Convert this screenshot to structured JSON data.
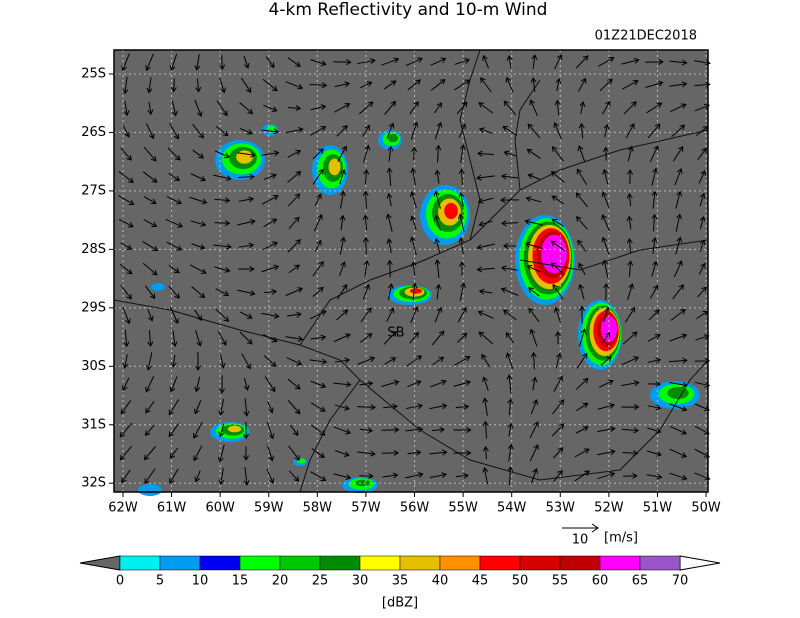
{
  "title": "4-km Reflectivity and 10-m Wind",
  "timestamp": "01Z21DEC2018",
  "map": {
    "xlim": [
      -62.185,
      -49.96
    ],
    "ylim": [
      -32.15,
      -24.59
    ],
    "lon_ticks": [
      {
        "value": -62,
        "label": "62W"
      },
      {
        "value": -61,
        "label": "61W"
      },
      {
        "value": -60,
        "label": "60W"
      },
      {
        "value": -59,
        "label": "59W"
      },
      {
        "value": -58,
        "label": "58W"
      },
      {
        "value": -57,
        "label": "57W"
      },
      {
        "value": -56,
        "label": "56W"
      },
      {
        "value": -55,
        "label": "55W"
      },
      {
        "value": -54,
        "label": "54W"
      },
      {
        "value": -53,
        "label": "53W"
      },
      {
        "value": -52,
        "label": "52W"
      },
      {
        "value": -51,
        "label": "51W"
      },
      {
        "value": -50,
        "label": "50W"
      }
    ],
    "lat_ticks": [
      {
        "value": -25,
        "label": "25S"
      },
      {
        "value": -26,
        "label": "26S"
      },
      {
        "value": -27,
        "label": "27S"
      },
      {
        "value": -28,
        "label": "28S"
      },
      {
        "value": -29,
        "label": "29S"
      },
      {
        "value": -30,
        "label": "30S"
      },
      {
        "value": -31,
        "label": "31S"
      },
      {
        "value": -32,
        "label": "32S"
      }
    ],
    "grid": true,
    "place_label": "SB"
  },
  "reference_vector": {
    "speed": 10,
    "unit": "[m/s]"
  },
  "colorbar": {
    "levels": [
      0,
      5,
      10,
      15,
      20,
      25,
      30,
      35,
      40,
      45,
      50,
      55,
      60,
      65,
      70
    ],
    "colors": [
      "#00f0f0",
      "#009cf0",
      "#0000f0",
      "#00ff00",
      "#00c800",
      "#008c00",
      "#ffff00",
      "#e6c000",
      "#ff9000",
      "#ff0000",
      "#d60000",
      "#c00000",
      "#ff00ff",
      "#9955c9"
    ],
    "unit": "[dBZ]"
  }
}
